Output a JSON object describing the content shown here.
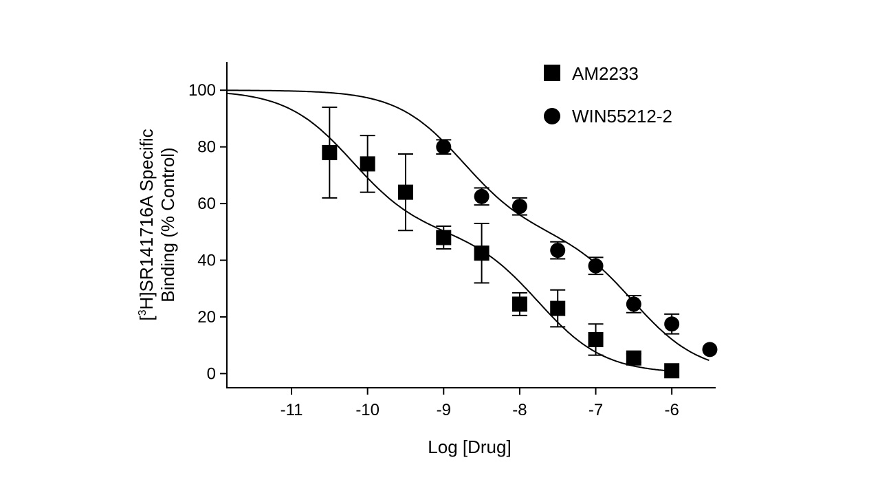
{
  "chart_data": {
    "type": "scatter",
    "title": "",
    "xlabel": "Log [Drug]",
    "ylabel_line1_prefix": "[",
    "ylabel_line1_superscript": "3",
    "ylabel_line1_rest": "H]SR141716A Specific",
    "ylabel_line2": "Binding (% Control)",
    "xlim": [
      -11.85,
      -5.45
    ],
    "ylim": [
      -5,
      110
    ],
    "x_ticks": [
      -11,
      -10,
      -9,
      -8,
      -7,
      -6
    ],
    "x_tick_labels": [
      "-11",
      "-10",
      "-9",
      "-8",
      "-7",
      "-6"
    ],
    "y_ticks": [
      0,
      20,
      40,
      60,
      80,
      100
    ],
    "y_tick_labels": [
      "0",
      "20",
      "40",
      "60",
      "80",
      "100"
    ],
    "grid": false,
    "legend_position": "top-right",
    "series": [
      {
        "name": "AM2233",
        "marker": "square",
        "x": [
          -10.5,
          -10,
          -9.5,
          -9,
          -8.5,
          -8,
          -7.5,
          -7,
          -6.5,
          -6
        ],
        "y": [
          78,
          74,
          64,
          48,
          42.5,
          24.5,
          23,
          12,
          5.5,
          1
        ],
        "error": [
          16,
          10,
          13.5,
          4,
          10.5,
          4,
          6.5,
          5.5,
          1.5,
          0.5
        ],
        "fit": {
          "model": "two-site",
          "top": 100,
          "bottom": 0,
          "fraction1": 0.5,
          "logEC50_1": -10.2,
          "logEC50_2": -7.75,
          "hill": 1
        }
      },
      {
        "name": "WIN55212-2",
        "marker": "circle",
        "x": [
          -9,
          -8.5,
          -8,
          -7.5,
          -7,
          -6.5,
          -6,
          -5.5
        ],
        "y": [
          80,
          62.5,
          59,
          43.5,
          38,
          24.5,
          17.5,
          8.5
        ],
        "error": [
          2.5,
          3,
          3,
          3,
          3,
          3,
          3.5,
          0.5
        ],
        "fit": {
          "model": "two-site",
          "top": 100,
          "bottom": 0,
          "fraction1": 0.5,
          "logEC50_1": -8.75,
          "logEC50_2": -6.5,
          "hill": 1
        }
      }
    ]
  }
}
